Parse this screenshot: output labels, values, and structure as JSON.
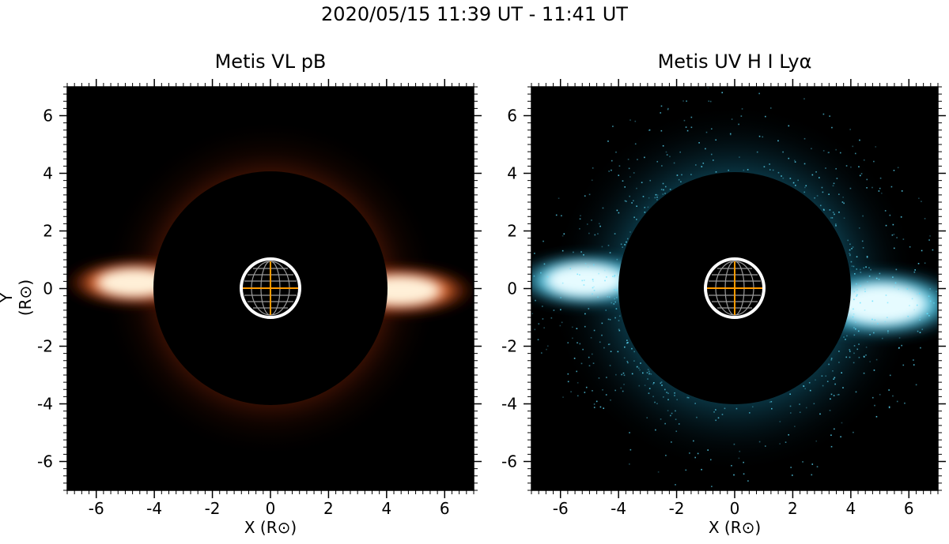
{
  "figure": {
    "title": "2020/05/15 11:39 UT - 11:41 UT",
    "panels": [
      {
        "id": "vl",
        "title": "Metis VL pB",
        "xlabel": "X (R⊙)",
        "ylabel": "Y (R⊙)",
        "color": "#ff4a10"
      },
      {
        "id": "uv",
        "title": "Metis UV H I Lyα",
        "xlabel": "X (R⊙)",
        "ylabel": "",
        "color": "#33d6ff"
      }
    ],
    "axes": {
      "xlim": [
        -7,
        7
      ],
      "ylim": [
        -7,
        7
      ],
      "ticks": [
        -6,
        -4,
        -2,
        0,
        2,
        4,
        6
      ],
      "tick_labels": [
        "-6",
        "-4",
        "-2",
        "0",
        "2",
        "4",
        "6"
      ],
      "occulter_radius": 4,
      "sun_radius": 1
    }
  }
}
